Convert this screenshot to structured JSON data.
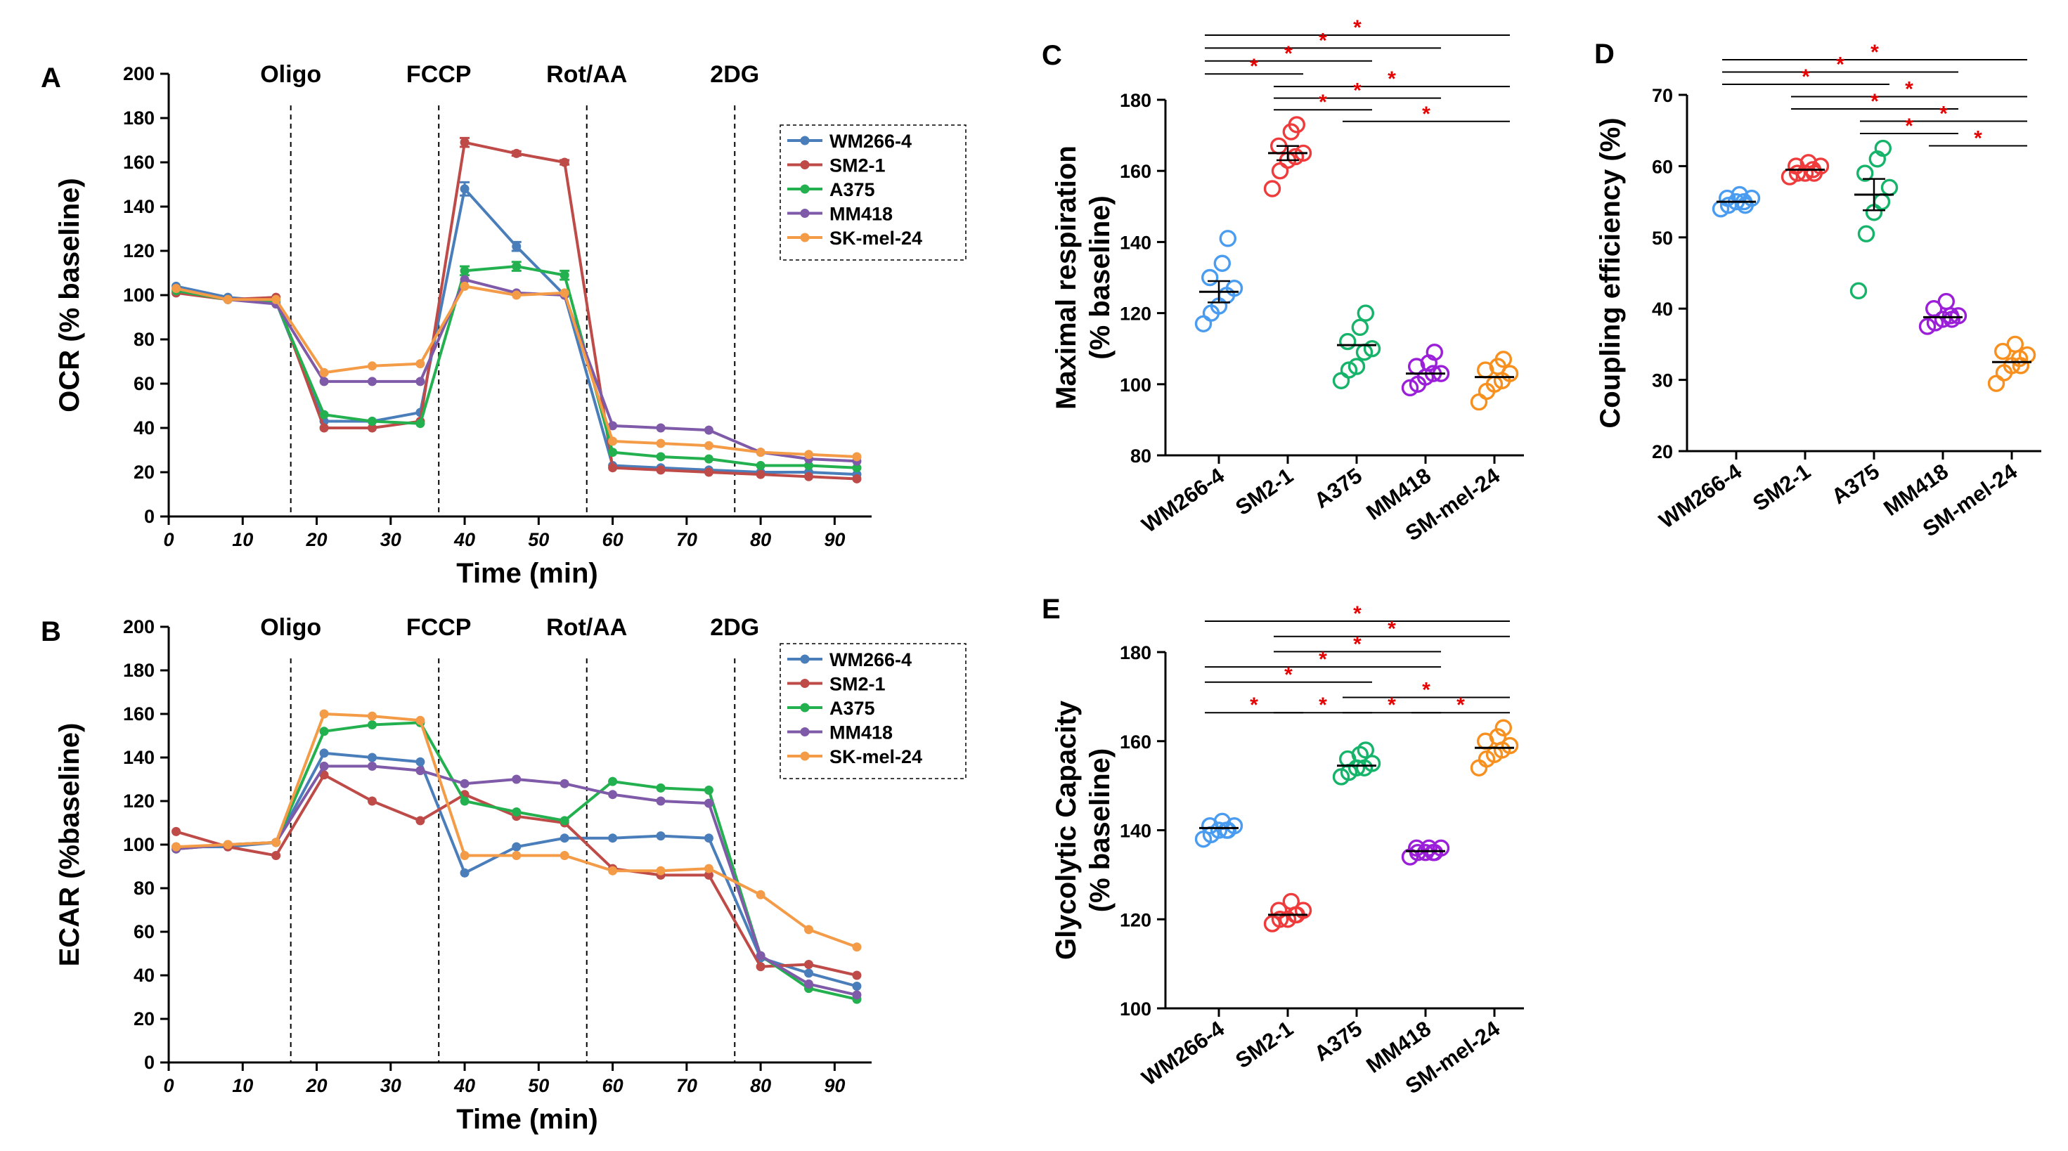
{
  "series_colors": {
    "WM266-4": "#4a7ebb",
    "SM2-1": "#be4b48",
    "A375": "#23b04f",
    "MM418": "#7f5aa8",
    "SK-mel-24": "#f49b47"
  },
  "scatter_colors": [
    "#4a9cf0",
    "#ef3b3b",
    "#16b36a",
    "#9b1fd8",
    "#f7901e"
  ],
  "star_color": "#e60000",
  "chart_data": [
    {
      "id": "A",
      "panel_label": "A",
      "type": "line",
      "ylabel": "OCR (% baseline)",
      "xlabel": "Time (min)",
      "xlim": [
        0,
        95
      ],
      "ylim": [
        0,
        200
      ],
      "xticks": [
        0,
        10,
        20,
        30,
        40,
        50,
        60,
        70,
        80,
        90
      ],
      "yticks": [
        0,
        20,
        40,
        60,
        80,
        100,
        120,
        140,
        160,
        180,
        200
      ],
      "events": [
        {
          "label": "Oligo",
          "x": 16.5
        },
        {
          "label": "FCCP",
          "x": 36.5
        },
        {
          "label": "Rot/AA",
          "x": 56.5
        },
        {
          "label": "2DG",
          "x": 76.5
        }
      ],
      "legend": [
        "WM266-4",
        "SM2-1",
        "A375",
        "MM418",
        "SK-mel-24"
      ],
      "x": [
        1,
        8,
        14.5,
        21,
        27.5,
        34,
        40,
        47,
        53.5,
        60,
        66.5,
        73,
        80,
        86.5,
        93
      ],
      "series": [
        {
          "name": "WM266-4",
          "values": [
            104,
            99,
            97,
            43,
            43,
            47,
            148,
            122,
            100,
            23,
            22,
            21,
            20,
            20,
            19
          ],
          "errors": [
            0,
            0,
            0,
            0,
            0,
            0,
            3,
            2,
            0,
            0,
            0,
            0,
            0,
            0,
            0
          ]
        },
        {
          "name": "SM2-1",
          "values": [
            101,
            98,
            99,
            40,
            40,
            43,
            169,
            164,
            160,
            22,
            21,
            20,
            19,
            18,
            17
          ],
          "errors": [
            0,
            0,
            0,
            0,
            0,
            0,
            2,
            1,
            1,
            0,
            0,
            0,
            0,
            0,
            0
          ]
        },
        {
          "name": "A375",
          "values": [
            102,
            98,
            97,
            46,
            43,
            42,
            111,
            113,
            109,
            29,
            27,
            26,
            23,
            23,
            22
          ],
          "errors": [
            0,
            0,
            0,
            0,
            0,
            0,
            2,
            2,
            2,
            0,
            0,
            0,
            0,
            0,
            0
          ]
        },
        {
          "name": "MM418",
          "values": [
            103,
            98,
            96,
            61,
            61,
            61,
            107,
            101,
            100,
            41,
            40,
            39,
            29,
            26,
            25
          ],
          "errors": [
            0,
            0,
            0,
            0,
            0,
            0,
            0,
            0,
            0,
            0,
            0,
            0,
            0,
            0,
            0
          ]
        },
        {
          "name": "SK-mel-24",
          "values": [
            103,
            98,
            98,
            65,
            68,
            69,
            104,
            100,
            101,
            34,
            33,
            32,
            29,
            28,
            27
          ],
          "errors": [
            0,
            0,
            0,
            0,
            0,
            0,
            0,
            0,
            0,
            0,
            0,
            0,
            0,
            0,
            0
          ]
        }
      ]
    },
    {
      "id": "B",
      "panel_label": "B",
      "type": "line",
      "ylabel": "ECAR (%baseline)",
      "xlabel": "Time (min)",
      "xlim": [
        0,
        95
      ],
      "ylim": [
        0,
        200
      ],
      "xticks": [
        0,
        10,
        20,
        30,
        40,
        50,
        60,
        70,
        80,
        90
      ],
      "yticks": [
        0,
        20,
        40,
        60,
        80,
        100,
        120,
        140,
        160,
        180,
        200
      ],
      "events": [
        {
          "label": "Oligo",
          "x": 16.5
        },
        {
          "label": "FCCP",
          "x": 36.5
        },
        {
          "label": "Rot/AA",
          "x": 56.5
        },
        {
          "label": "2DG",
          "x": 76.5
        }
      ],
      "legend": [
        "WM266-4",
        "SM2-1",
        "A375",
        "MM418",
        "SK-mel-24"
      ],
      "x": [
        1,
        8,
        14.5,
        21,
        27.5,
        34,
        40,
        47,
        53.5,
        60,
        66.5,
        73,
        80,
        86.5,
        93
      ],
      "series": [
        {
          "name": "WM266-4",
          "values": [
            99,
            99,
            101,
            142,
            140,
            138,
            87,
            99,
            103,
            103,
            104,
            103,
            48,
            41,
            35
          ]
        },
        {
          "name": "SM2-1",
          "values": [
            106,
            99,
            95,
            132,
            120,
            111,
            123,
            113,
            110,
            89,
            86,
            86,
            44,
            45,
            40
          ]
        },
        {
          "name": "A375",
          "values": [
            98,
            100,
            101,
            152,
            155,
            156,
            120,
            115,
            111,
            129,
            126,
            125,
            49,
            34,
            29
          ]
        },
        {
          "name": "MM418",
          "values": [
            98,
            100,
            101,
            136,
            136,
            134,
            128,
            130,
            128,
            123,
            120,
            119,
            49,
            36,
            31
          ]
        },
        {
          "name": "SK-mel-24",
          "values": [
            99,
            100,
            101,
            160,
            159,
            157,
            95,
            95,
            95,
            88,
            88,
            89,
            77,
            61,
            53
          ]
        }
      ]
    },
    {
      "id": "C",
      "panel_label": "C",
      "type": "scatter",
      "ylabel": [
        "Maximal respiration",
        "(% baseline)"
      ],
      "ylim": [
        80,
        180
      ],
      "yticks": [
        80,
        100,
        120,
        140,
        160,
        180
      ],
      "categories": [
        "WM266-4",
        "SM2-1",
        "A375",
        "MM418",
        "SM-mel-24"
      ],
      "points": [
        [
          117,
          120,
          122,
          125,
          127,
          130,
          134,
          141
        ],
        [
          155,
          160,
          163,
          164,
          165,
          167,
          171,
          173
        ],
        [
          101,
          104,
          105,
          109,
          110,
          112,
          116,
          120
        ],
        [
          99,
          100,
          102,
          103,
          103,
          105,
          106,
          109
        ],
        [
          95,
          98,
          100,
          101,
          103,
          104,
          105,
          107
        ]
      ],
      "means": [
        126,
        165,
        111,
        103,
        102
      ],
      "sems": [
        3,
        2,
        0,
        0,
        0
      ],
      "significance": [
        {
          "pair": [
            0,
            4
          ],
          "label": "*"
        },
        {
          "pair": [
            0,
            3
          ],
          "label": "*"
        },
        {
          "pair": [
            0,
            2
          ],
          "label": "*"
        },
        {
          "pair": [
            0,
            1
          ],
          "label": "*"
        },
        {
          "pair": [
            1,
            4
          ],
          "label": "*"
        },
        {
          "pair": [
            1,
            3
          ],
          "label": "*"
        },
        {
          "pair": [
            1,
            2
          ],
          "label": "*"
        },
        {
          "pair": [
            2,
            4
          ],
          "label": "*"
        }
      ]
    },
    {
      "id": "D",
      "panel_label": "D",
      "type": "scatter",
      "ylabel": "Coupling efficiency (%)",
      "ylim": [
        20,
        70
      ],
      "yticks": [
        20,
        30,
        40,
        50,
        60,
        70
      ],
      "categories": [
        "WM266-4",
        "SM2-1",
        "A375",
        "MM418",
        "SM-mel-24"
      ],
      "points": [
        [
          54,
          54.5,
          55,
          55,
          55.5,
          55.5,
          56,
          54.5
        ],
        [
          58.5,
          59,
          59,
          59.5,
          60,
          60,
          60.5,
          59
        ],
        [
          42.5,
          50.5,
          53.5,
          55,
          57,
          59,
          61,
          62.5
        ],
        [
          37.5,
          38,
          38.5,
          39,
          39,
          40,
          41,
          38.5
        ],
        [
          29.5,
          31,
          32,
          33,
          33.5,
          34,
          35,
          32
        ]
      ],
      "means": [
        55,
        59.5,
        56,
        38.8,
        32.5
      ],
      "sems": [
        0,
        0,
        2.2,
        0,
        0
      ],
      "significance": [
        {
          "pair": [
            0,
            4
          ],
          "label": "*"
        },
        {
          "pair": [
            0,
            3
          ],
          "label": "*"
        },
        {
          "pair": [
            0,
            2
          ],
          "label": "*"
        },
        {
          "pair": [
            1,
            4
          ],
          "label": "*"
        },
        {
          "pair": [
            1,
            3
          ],
          "label": "*"
        },
        {
          "pair": [
            2,
            4
          ],
          "label": "*"
        },
        {
          "pair": [
            2,
            3
          ],
          "label": "*"
        },
        {
          "pair": [
            3,
            4
          ],
          "label": "*"
        }
      ]
    },
    {
      "id": "E",
      "panel_label": "E",
      "type": "scatter",
      "ylabel": [
        "Glycolytic Capacity",
        "(% baseline)"
      ],
      "ylim": [
        100,
        180
      ],
      "yticks": [
        100,
        120,
        140,
        160,
        180
      ],
      "categories": [
        "WM266-4",
        "SM2-1",
        "A375",
        "MM418",
        "SM-mel-24"
      ],
      "points": [
        [
          138,
          139,
          140,
          140,
          141,
          141,
          142,
          140
        ],
        [
          119,
          120,
          120,
          121,
          122,
          122,
          124,
          121
        ],
        [
          152,
          153,
          154,
          154,
          155,
          156,
          157,
          158
        ],
        [
          134,
          135,
          135,
          135,
          136,
          136,
          136,
          135
        ],
        [
          154,
          156,
          157,
          158,
          159,
          160,
          161,
          163
        ]
      ],
      "means": [
        140.5,
        121,
        154.5,
        135.3,
        158.5
      ],
      "sems": [
        0,
        0,
        0,
        0,
        0
      ],
      "significance": [
        {
          "pair": [
            0,
            4
          ],
          "label": "*"
        },
        {
          "pair": [
            1,
            4
          ],
          "label": "*"
        },
        {
          "pair": [
            1,
            3
          ],
          "label": "*"
        },
        {
          "pair": [
            0,
            3
          ],
          "label": "*"
        },
        {
          "pair": [
            0,
            2
          ],
          "label": "*"
        },
        {
          "pair": [
            2,
            4
          ],
          "label": "*"
        },
        {
          "pair": [
            0,
            1
          ],
          "label": "*"
        },
        {
          "pair": [
            1,
            2
          ],
          "label": "*"
        },
        {
          "pair": [
            2,
            3
          ],
          "label": "*"
        },
        {
          "pair": [
            3,
            4
          ],
          "label": "*"
        }
      ]
    }
  ]
}
